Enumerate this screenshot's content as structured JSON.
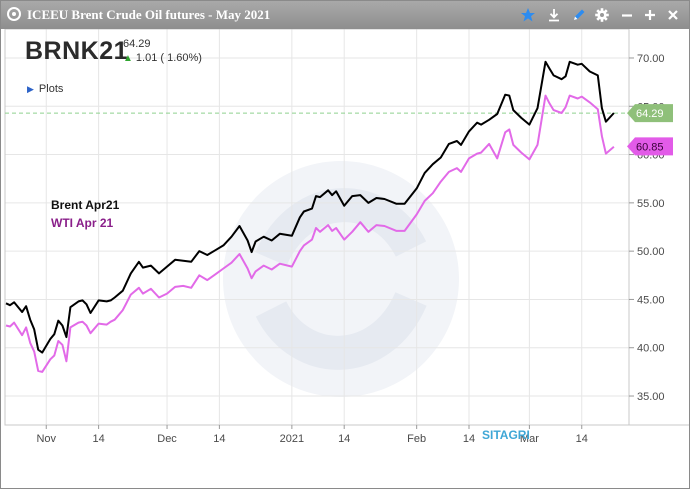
{
  "window": {
    "title": "ICEEU Brent Crude Oil futures - May 2021",
    "icons": [
      "star-icon",
      "download-icon",
      "pencil-icon",
      "gear-icon",
      "minimize-icon",
      "add-icon",
      "close-icon"
    ],
    "accent_color": "#2d8cf0"
  },
  "quote": {
    "symbol": "BRNK21",
    "last": "64.29",
    "change_arrow": "▲",
    "change": "1.01 ( 1.60%)"
  },
  "plots": {
    "arrow": "▶",
    "label": "Plots"
  },
  "legend": {
    "series_a": "Brent Apr21",
    "series_b": "WTI Apr 21"
  },
  "watermark": "SITAGRI",
  "price_tags": {
    "last_a": "64.29",
    "last_b": "60.85",
    "color_a": "#8fc07a",
    "color_b": "#e25be8"
  },
  "chart_data": {
    "type": "line",
    "x_axis": {
      "start": "2020-10-22",
      "end": "2021-03-24",
      "tick_dates": [
        "2020-11-01",
        "2020-11-14",
        "2020-12-01",
        "2020-12-14",
        "2021-01-01",
        "2021-01-14",
        "2021-02-01",
        "2021-02-14",
        "2021-03-01",
        "2021-03-14"
      ],
      "tick_labels": [
        "Nov",
        "14",
        "Dec",
        "14",
        "2021",
        "14",
        "Feb",
        "14",
        "Mar",
        "14"
      ]
    },
    "y_axis": {
      "ylim": [
        32,
        73
      ],
      "ticks": [
        35,
        40,
        45,
        50,
        55,
        60,
        65,
        70
      ],
      "tick_labels": [
        "35.00",
        "40.00",
        "45.00",
        "50.00",
        "55.00",
        "60.00",
        "65.00",
        "70.00"
      ],
      "position": "right"
    },
    "grid": true,
    "reference_line": {
      "value": 64.29,
      "style": "dashed",
      "color": "#8fd18f"
    },
    "series": [
      {
        "name": "Brent Apr21",
        "color": "#000000",
        "points": [
          [
            "2020-10-22",
            44.6
          ],
          [
            "2020-10-23",
            44.4
          ],
          [
            "2020-10-24",
            44.7
          ],
          [
            "2020-10-26",
            43.7
          ],
          [
            "2020-10-27",
            44.3
          ],
          [
            "2020-10-28",
            42.9
          ],
          [
            "2020-10-29",
            41.9
          ],
          [
            "2020-10-30",
            39.8
          ],
          [
            "2020-10-31",
            39.5
          ],
          [
            "2020-11-02",
            40.9
          ],
          [
            "2020-11-03",
            41.4
          ],
          [
            "2020-11-04",
            42.8
          ],
          [
            "2020-11-05",
            42.3
          ],
          [
            "2020-11-06",
            41.1
          ],
          [
            "2020-11-07",
            44.2
          ],
          [
            "2020-11-09",
            44.8
          ],
          [
            "2020-11-10",
            44.9
          ],
          [
            "2020-11-11",
            44.5
          ],
          [
            "2020-11-12",
            43.6
          ],
          [
            "2020-11-14",
            44.9
          ],
          [
            "2020-11-16",
            44.8
          ],
          [
            "2020-11-17",
            44.9
          ],
          [
            "2020-11-18",
            45.2
          ],
          [
            "2020-11-20",
            45.9
          ],
          [
            "2020-11-22",
            47.7
          ],
          [
            "2020-11-24",
            48.9
          ],
          [
            "2020-11-25",
            48.3
          ],
          [
            "2020-11-27",
            48.5
          ],
          [
            "2020-11-29",
            47.7
          ],
          [
            "2020-12-01",
            48.4
          ],
          [
            "2020-12-03",
            49.1
          ],
          [
            "2020-12-05",
            49.0
          ],
          [
            "2020-12-07",
            48.9
          ],
          [
            "2020-12-09",
            50.0
          ],
          [
            "2020-12-11",
            49.6
          ],
          [
            "2020-12-13",
            50.1
          ],
          [
            "2020-12-15",
            50.6
          ],
          [
            "2020-12-17",
            51.5
          ],
          [
            "2020-12-19",
            52.6
          ],
          [
            "2020-12-21",
            51.1
          ],
          [
            "2020-12-22",
            49.9
          ],
          [
            "2020-12-23",
            51.0
          ],
          [
            "2020-12-25",
            51.5
          ],
          [
            "2020-12-27",
            51.1
          ],
          [
            "2020-12-29",
            51.8
          ],
          [
            "2021-01-01",
            51.6
          ],
          [
            "2021-01-03",
            53.5
          ],
          [
            "2021-01-04",
            54.1
          ],
          [
            "2021-01-06",
            54.4
          ],
          [
            "2021-01-07",
            55.7
          ],
          [
            "2021-01-08",
            55.6
          ],
          [
            "2021-01-10",
            56.3
          ],
          [
            "2021-01-11",
            55.8
          ],
          [
            "2021-01-12",
            56.2
          ],
          [
            "2021-01-14",
            54.7
          ],
          [
            "2021-01-16",
            55.7
          ],
          [
            "2021-01-18",
            55.8
          ],
          [
            "2021-01-20",
            55.0
          ],
          [
            "2021-01-22",
            55.5
          ],
          [
            "2021-01-24",
            55.4
          ],
          [
            "2021-01-27",
            54.9
          ],
          [
            "2021-01-29",
            54.9
          ],
          [
            "2021-02-01",
            56.5
          ],
          [
            "2021-02-03",
            58.1
          ],
          [
            "2021-02-05",
            59.0
          ],
          [
            "2021-02-07",
            59.7
          ],
          [
            "2021-02-09",
            61.1
          ],
          [
            "2021-02-11",
            61.4
          ],
          [
            "2021-02-12",
            61.0
          ],
          [
            "2021-02-14",
            62.4
          ],
          [
            "2021-02-16",
            63.3
          ],
          [
            "2021-02-17",
            63.1
          ],
          [
            "2021-02-19",
            63.6
          ],
          [
            "2021-02-21",
            64.2
          ],
          [
            "2021-02-23",
            66.2
          ],
          [
            "2021-02-24",
            66.1
          ],
          [
            "2021-02-25",
            64.6
          ],
          [
            "2021-02-27",
            63.8
          ],
          [
            "2021-03-01",
            63.1
          ],
          [
            "2021-03-03",
            64.8
          ],
          [
            "2021-03-05",
            69.6
          ],
          [
            "2021-03-06",
            68.9
          ],
          [
            "2021-03-07",
            68.2
          ],
          [
            "2021-03-09",
            67.8
          ],
          [
            "2021-03-10",
            68.1
          ],
          [
            "2021-03-11",
            69.6
          ],
          [
            "2021-03-13",
            69.3
          ],
          [
            "2021-03-14",
            69.4
          ],
          [
            "2021-03-16",
            68.6
          ],
          [
            "2021-03-18",
            68.2
          ],
          [
            "2021-03-19",
            64.8
          ],
          [
            "2021-03-20",
            63.4
          ],
          [
            "2021-03-22",
            64.3
          ]
        ]
      },
      {
        "name": "WTI Apr 21",
        "color": "#e26ae8",
        "points": [
          [
            "2020-10-22",
            42.3
          ],
          [
            "2020-10-23",
            42.2
          ],
          [
            "2020-10-24",
            42.6
          ],
          [
            "2020-10-26",
            41.3
          ],
          [
            "2020-10-27",
            42.1
          ],
          [
            "2020-10-28",
            40.5
          ],
          [
            "2020-10-29",
            39.6
          ],
          [
            "2020-10-30",
            37.6
          ],
          [
            "2020-10-31",
            37.5
          ],
          [
            "2020-11-02",
            38.8
          ],
          [
            "2020-11-03",
            39.2
          ],
          [
            "2020-11-04",
            40.7
          ],
          [
            "2020-11-05",
            40.3
          ],
          [
            "2020-11-06",
            38.6
          ],
          [
            "2020-11-07",
            42.1
          ],
          [
            "2020-11-09",
            42.6
          ],
          [
            "2020-11-10",
            42.7
          ],
          [
            "2020-11-11",
            42.3
          ],
          [
            "2020-11-12",
            41.5
          ],
          [
            "2020-11-14",
            42.5
          ],
          [
            "2020-11-16",
            42.4
          ],
          [
            "2020-11-17",
            42.7
          ],
          [
            "2020-11-18",
            42.9
          ],
          [
            "2020-11-20",
            43.9
          ],
          [
            "2020-11-22",
            45.5
          ],
          [
            "2020-11-24",
            46.2
          ],
          [
            "2020-11-25",
            45.6
          ],
          [
            "2020-11-27",
            46.1
          ],
          [
            "2020-11-29",
            45.2
          ],
          [
            "2020-12-01",
            45.6
          ],
          [
            "2020-12-03",
            46.3
          ],
          [
            "2020-12-05",
            46.4
          ],
          [
            "2020-12-07",
            46.2
          ],
          [
            "2020-12-09",
            47.5
          ],
          [
            "2020-12-11",
            47.0
          ],
          [
            "2020-12-13",
            47.6
          ],
          [
            "2020-12-15",
            48.2
          ],
          [
            "2020-12-17",
            48.8
          ],
          [
            "2020-12-19",
            49.7
          ],
          [
            "2020-12-21",
            48.2
          ],
          [
            "2020-12-22",
            47.2
          ],
          [
            "2020-12-23",
            47.9
          ],
          [
            "2020-12-25",
            48.5
          ],
          [
            "2020-12-27",
            48.1
          ],
          [
            "2020-12-29",
            48.7
          ],
          [
            "2021-01-01",
            48.4
          ],
          [
            "2021-01-03",
            50.0
          ],
          [
            "2021-01-04",
            50.6
          ],
          [
            "2021-01-06",
            51.2
          ],
          [
            "2021-01-07",
            52.4
          ],
          [
            "2021-01-08",
            52.0
          ],
          [
            "2021-01-10",
            52.7
          ],
          [
            "2021-01-11",
            52.1
          ],
          [
            "2021-01-12",
            52.4
          ],
          [
            "2021-01-14",
            51.2
          ],
          [
            "2021-01-16",
            52.0
          ],
          [
            "2021-01-18",
            53.0
          ],
          [
            "2021-01-20",
            52.0
          ],
          [
            "2021-01-22",
            52.7
          ],
          [
            "2021-01-24",
            52.6
          ],
          [
            "2021-01-27",
            52.1
          ],
          [
            "2021-01-29",
            52.1
          ],
          [
            "2021-02-01",
            53.8
          ],
          [
            "2021-02-03",
            55.2
          ],
          [
            "2021-02-05",
            56.0
          ],
          [
            "2021-02-07",
            57.2
          ],
          [
            "2021-02-09",
            58.2
          ],
          [
            "2021-02-11",
            58.6
          ],
          [
            "2021-02-12",
            58.2
          ],
          [
            "2021-02-14",
            59.6
          ],
          [
            "2021-02-16",
            60.1
          ],
          [
            "2021-02-17",
            60.2
          ],
          [
            "2021-02-19",
            61.1
          ],
          [
            "2021-02-21",
            59.6
          ],
          [
            "2021-02-23",
            62.3
          ],
          [
            "2021-02-24",
            62.6
          ],
          [
            "2021-02-25",
            61.0
          ],
          [
            "2021-02-27",
            60.2
          ],
          [
            "2021-03-01",
            59.5
          ],
          [
            "2021-03-03",
            61.0
          ],
          [
            "2021-03-05",
            66.1
          ],
          [
            "2021-03-06",
            65.3
          ],
          [
            "2021-03-07",
            64.6
          ],
          [
            "2021-03-09",
            64.3
          ],
          [
            "2021-03-10",
            64.9
          ],
          [
            "2021-03-11",
            66.1
          ],
          [
            "2021-03-13",
            65.8
          ],
          [
            "2021-03-14",
            66.0
          ],
          [
            "2021-03-16",
            65.4
          ],
          [
            "2021-03-18",
            64.7
          ],
          [
            "2021-03-19",
            61.9
          ],
          [
            "2021-03-20",
            60.1
          ],
          [
            "2021-03-22",
            60.8
          ]
        ]
      }
    ]
  }
}
